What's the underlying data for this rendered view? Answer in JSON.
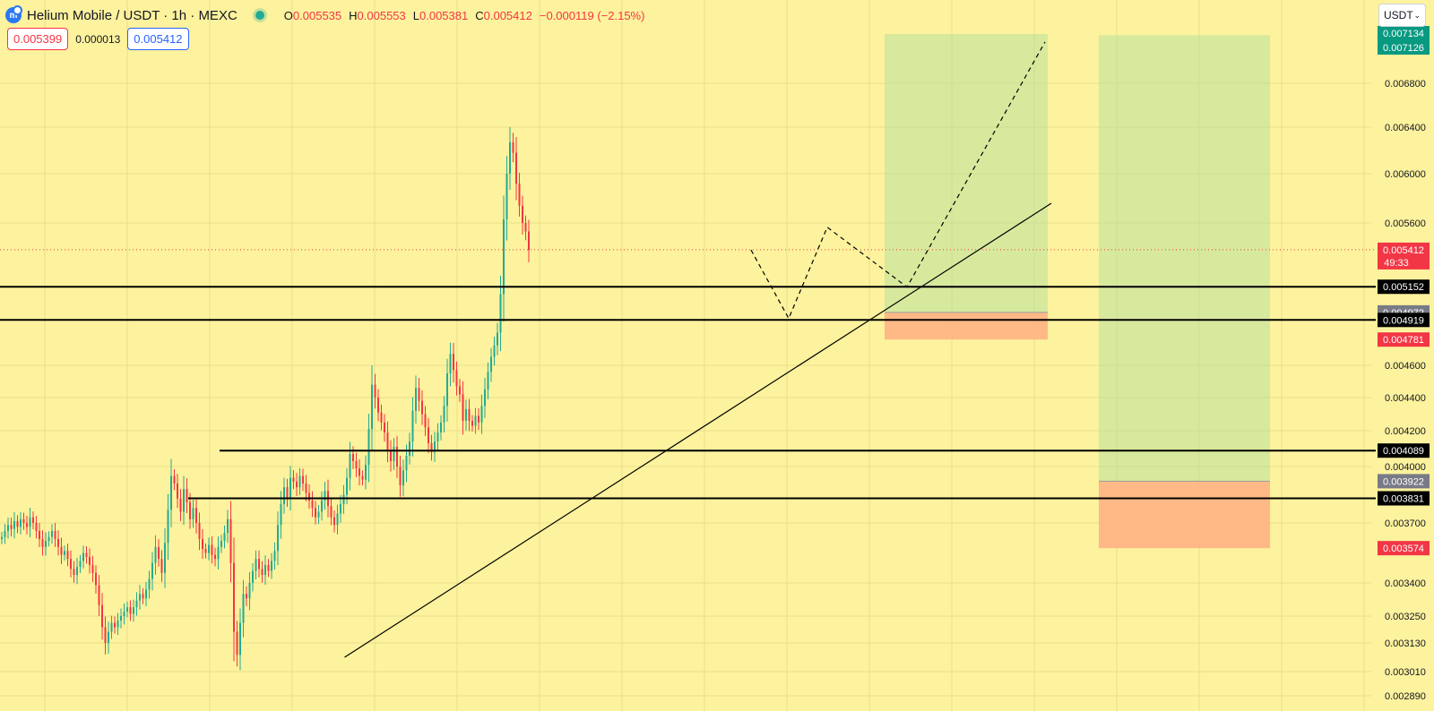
{
  "header": {
    "logo_glyph": "m",
    "symbol": "Helium Mobile / USDT · 1h · MEXC",
    "ohlc": {
      "o_label": "O",
      "o": "0.005535",
      "h_label": "H",
      "h": "0.005553",
      "l_label": "L",
      "l": "0.005381",
      "c_label": "C",
      "c": "0.005412",
      "change": "−0.000119 (−2.15%)"
    }
  },
  "quote": {
    "sell": "0.005399",
    "spread": "0.000013",
    "buy": "0.005412"
  },
  "currency": {
    "value": "USDT",
    "icon": "chevron-down-icon"
  },
  "colors": {
    "background": "#fdf29d",
    "up": "#22ab94",
    "down": "#f23645",
    "target_zone": "rgba(168,222,158,0.45)",
    "stop_zone": "rgba(255,175,130,0.85)",
    "level_label": "#000000",
    "entry_label": "#787b86",
    "price_label": "#f23645",
    "target_label": "#089981"
  },
  "price_axis": {
    "ticks": [
      "0.006800",
      "0.006400",
      "0.006000",
      "0.005600",
      "0.004600",
      "0.004400",
      "0.004200",
      "0.004000",
      "0.003700",
      "0.003400",
      "0.003250",
      "0.003130",
      "0.003010",
      "0.002890"
    ],
    "current_price": "0.005412",
    "countdown": "49:33",
    "labels": [
      {
        "text": "0.007134",
        "kind": "target"
      },
      {
        "text": "0.007126",
        "kind": "target"
      },
      {
        "text": "0.005152",
        "kind": "level"
      },
      {
        "text": "0.004972",
        "kind": "entry"
      },
      {
        "text": "0.004919",
        "kind": "level"
      },
      {
        "text": "0.004781",
        "kind": "stop"
      },
      {
        "text": "0.004089",
        "kind": "level"
      },
      {
        "text": "0.003922",
        "kind": "entry"
      },
      {
        "text": "0.003831",
        "kind": "level"
      },
      {
        "text": "0.003574",
        "kind": "stop"
      }
    ]
  },
  "chart_data": {
    "type": "candlestick",
    "symbol": "Helium Mobile / USDT",
    "interval": "1h",
    "exchange": "MEXC",
    "last_price": 0.005412,
    "horizontal_levels": [
      0.005152,
      0.004919,
      0.004089,
      0.003831
    ],
    "trendline": {
      "start_price": 0.00307,
      "start_index": 75,
      "end_price": 0.00576,
      "end_index": 230
    },
    "positions": [
      {
        "type": "long",
        "entry": 0.004972,
        "target": 0.007134,
        "stop": 0.004781
      },
      {
        "type": "long",
        "entry": 0.003922,
        "target": 0.007126,
        "stop": 0.003574
      }
    ],
    "projection_path": [
      0.00541,
      0.00493,
      0.00557,
      0.00515,
      0.00708
    ],
    "closes": [
      0.00363,
      0.00366,
      0.00369,
      0.00367,
      0.00371,
      0.00368,
      0.00372,
      0.0037,
      0.00368,
      0.00373,
      0.0037,
      0.00366,
      0.00362,
      0.00358,
      0.00361,
      0.00363,
      0.00366,
      0.00362,
      0.00358,
      0.00354,
      0.00356,
      0.00352,
      0.00347,
      0.00344,
      0.00348,
      0.00351,
      0.00355,
      0.00353,
      0.00349,
      0.00345,
      0.00339,
      0.0033,
      0.0032,
      0.00313,
      0.00318,
      0.00322,
      0.0032,
      0.00323,
      0.00325,
      0.00327,
      0.00329,
      0.00326,
      0.00329,
      0.00332,
      0.00335,
      0.00333,
      0.00337,
      0.00342,
      0.0035,
      0.00358,
      0.00352,
      0.00345,
      0.0036,
      0.00377,
      0.00395,
      0.00391,
      0.00383,
      0.00376,
      0.00388,
      0.00381,
      0.00372,
      0.00378,
      0.0037,
      0.00362,
      0.00357,
      0.00355,
      0.00359,
      0.00354,
      0.00352,
      0.00358,
      0.00361,
      0.00365,
      0.00372,
      0.0035,
      0.00318,
      0.00308,
      0.00322,
      0.00335,
      0.00333,
      0.0034,
      0.00346,
      0.00352,
      0.00347,
      0.00344,
      0.00349,
      0.00346,
      0.00351,
      0.00356,
      0.00369,
      0.0038,
      0.00389,
      0.00383,
      0.00394,
      0.00392,
      0.00389,
      0.00395,
      0.00391,
      0.00386,
      0.00382,
      0.00378,
      0.00373,
      0.00376,
      0.00382,
      0.00387,
      0.00379,
      0.00373,
      0.00369,
      0.00375,
      0.0038,
      0.00385,
      0.00394,
      0.00407,
      0.00403,
      0.00399,
      0.00395,
      0.00393,
      0.00401,
      0.00421,
      0.00448,
      0.0044,
      0.00431,
      0.00425,
      0.00419,
      0.00409,
      0.00403,
      0.00411,
      0.004,
      0.0039,
      0.00398,
      0.00406,
      0.00414,
      0.00432,
      0.00446,
      0.00438,
      0.0043,
      0.00422,
      0.00413,
      0.00408,
      0.00414,
      0.00419,
      0.00425,
      0.00435,
      0.00455,
      0.00468,
      0.00457,
      0.00447,
      0.00442,
      0.00426,
      0.00433,
      0.00426,
      0.00423,
      0.00429,
      0.00425,
      0.00435,
      0.00445,
      0.00456,
      0.00466,
      0.00474,
      0.00483,
      0.0051,
      0.00563,
      0.006,
      0.00627,
      0.00618,
      0.00592,
      0.00574,
      0.0056,
      0.00554,
      0.00541
    ]
  }
}
